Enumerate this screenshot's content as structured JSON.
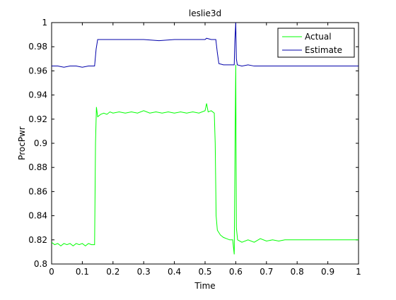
{
  "chart_data": {
    "type": "line",
    "title": "leslie3d",
    "xlabel": "Time",
    "ylabel": "ProcPwr",
    "xlim": [
      0,
      1
    ],
    "ylim": [
      0.8,
      1.0
    ],
    "xticks": [
      0,
      0.1,
      0.2,
      0.3,
      0.4,
      0.5,
      0.6,
      0.7,
      0.8,
      0.9,
      1
    ],
    "xtick_labels": [
      "0",
      "0.1",
      "0.2",
      "0.3",
      "0.4",
      "0.5",
      "0.6",
      "0.7",
      "0.8",
      "0.9",
      "1"
    ],
    "yticks": [
      0.8,
      0.82,
      0.84,
      0.86,
      0.88,
      0.9,
      0.92,
      0.94,
      0.96,
      0.98,
      1.0
    ],
    "ytick_labels": [
      "0.8",
      "0.82",
      "0.84",
      "0.86",
      "0.88",
      "0.9",
      "0.92",
      "0.94",
      "0.96",
      "0.98",
      "1"
    ],
    "grid": false,
    "legend_position": "top-right",
    "series": [
      {
        "name": "Actual",
        "color": "#00ff00",
        "points": [
          [
            0.0,
            0.818
          ],
          [
            0.01,
            0.816
          ],
          [
            0.02,
            0.817
          ],
          [
            0.03,
            0.815
          ],
          [
            0.04,
            0.817
          ],
          [
            0.05,
            0.816
          ],
          [
            0.06,
            0.817
          ],
          [
            0.07,
            0.815
          ],
          [
            0.08,
            0.817
          ],
          [
            0.09,
            0.816
          ],
          [
            0.1,
            0.817
          ],
          [
            0.11,
            0.815
          ],
          [
            0.12,
            0.817
          ],
          [
            0.13,
            0.816
          ],
          [
            0.14,
            0.816
          ],
          [
            0.143,
            0.9
          ],
          [
            0.146,
            0.93
          ],
          [
            0.15,
            0.922
          ],
          [
            0.16,
            0.924
          ],
          [
            0.17,
            0.925
          ],
          [
            0.18,
            0.924
          ],
          [
            0.19,
            0.926
          ],
          [
            0.2,
            0.925
          ],
          [
            0.22,
            0.926
          ],
          [
            0.24,
            0.925
          ],
          [
            0.26,
            0.926
          ],
          [
            0.28,
            0.925
          ],
          [
            0.3,
            0.927
          ],
          [
            0.32,
            0.925
          ],
          [
            0.34,
            0.926
          ],
          [
            0.36,
            0.925
          ],
          [
            0.38,
            0.926
          ],
          [
            0.4,
            0.925
          ],
          [
            0.42,
            0.926
          ],
          [
            0.44,
            0.925
          ],
          [
            0.46,
            0.926
          ],
          [
            0.48,
            0.925
          ],
          [
            0.5,
            0.927
          ],
          [
            0.505,
            0.933
          ],
          [
            0.51,
            0.926
          ],
          [
            0.52,
            0.927
          ],
          [
            0.53,
            0.925
          ],
          [
            0.533,
            0.9
          ],
          [
            0.536,
            0.84
          ],
          [
            0.54,
            0.828
          ],
          [
            0.55,
            0.824
          ],
          [
            0.56,
            0.822
          ],
          [
            0.57,
            0.821
          ],
          [
            0.58,
            0.82
          ],
          [
            0.59,
            0.82
          ],
          [
            0.595,
            0.808
          ],
          [
            0.598,
            0.91
          ],
          [
            0.6,
            0.965
          ],
          [
            0.602,
            0.83
          ],
          [
            0.606,
            0.82
          ],
          [
            0.62,
            0.818
          ],
          [
            0.64,
            0.82
          ],
          [
            0.66,
            0.818
          ],
          [
            0.68,
            0.821
          ],
          [
            0.7,
            0.819
          ],
          [
            0.72,
            0.82
          ],
          [
            0.74,
            0.819
          ],
          [
            0.76,
            0.82
          ],
          [
            0.8,
            0.82
          ],
          [
            0.85,
            0.82
          ],
          [
            0.9,
            0.82
          ],
          [
            0.95,
            0.82
          ],
          [
            1.0,
            0.82
          ]
        ]
      },
      {
        "name": "Estimate",
        "color": "#0000aa",
        "points": [
          [
            0.0,
            0.964
          ],
          [
            0.02,
            0.964
          ],
          [
            0.04,
            0.963
          ],
          [
            0.06,
            0.964
          ],
          [
            0.08,
            0.964
          ],
          [
            0.1,
            0.963
          ],
          [
            0.12,
            0.964
          ],
          [
            0.14,
            0.964
          ],
          [
            0.145,
            0.978
          ],
          [
            0.15,
            0.986
          ],
          [
            0.2,
            0.986
          ],
          [
            0.25,
            0.986
          ],
          [
            0.3,
            0.986
          ],
          [
            0.35,
            0.985
          ],
          [
            0.4,
            0.986
          ],
          [
            0.45,
            0.986
          ],
          [
            0.5,
            0.986
          ],
          [
            0.505,
            0.987
          ],
          [
            0.52,
            0.986
          ],
          [
            0.535,
            0.986
          ],
          [
            0.54,
            0.975
          ],
          [
            0.545,
            0.966
          ],
          [
            0.56,
            0.965
          ],
          [
            0.58,
            0.965
          ],
          [
            0.595,
            0.965
          ],
          [
            0.597,
            0.985
          ],
          [
            0.6,
            1.0
          ],
          [
            0.602,
            0.97
          ],
          [
            0.605,
            0.965
          ],
          [
            0.62,
            0.964
          ],
          [
            0.64,
            0.965
          ],
          [
            0.66,
            0.964
          ],
          [
            0.7,
            0.964
          ],
          [
            0.75,
            0.964
          ],
          [
            0.8,
            0.964
          ],
          [
            0.9,
            0.964
          ],
          [
            1.0,
            0.964
          ]
        ]
      }
    ]
  }
}
